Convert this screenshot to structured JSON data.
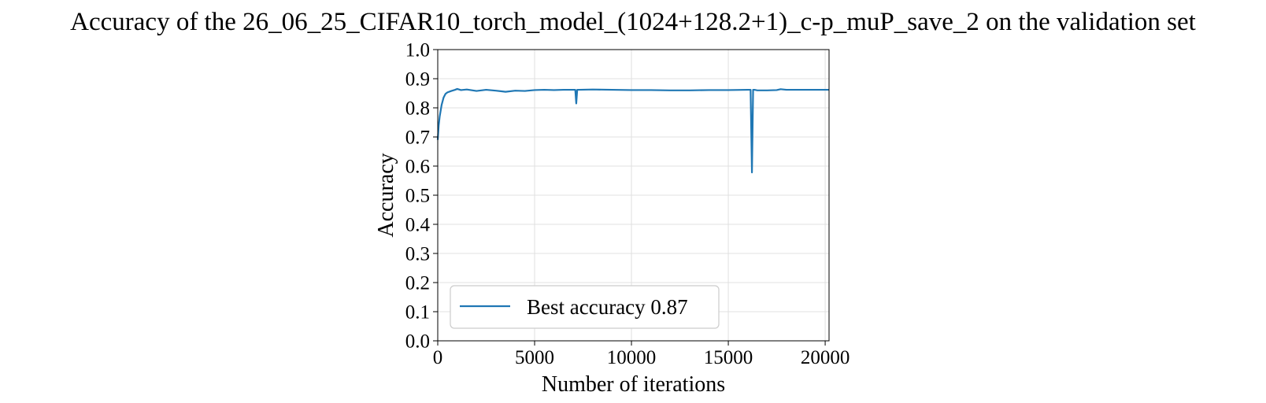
{
  "chart_data": {
    "type": "line",
    "title": "Accuracy of the 26_06_25_CIFAR10_torch_model_(1024+128.2+1)_c-p_muP_save_2 on the validation set",
    "xlabel": "Number of iterations",
    "ylabel": "Accuracy",
    "xlim": [
      0,
      20200
    ],
    "ylim": [
      0.0,
      1.0
    ],
    "x_ticks": [
      0,
      5000,
      10000,
      15000,
      20000
    ],
    "x_tick_labels": [
      "0",
      "5000",
      "10000",
      "15000",
      "20000"
    ],
    "y_ticks": [
      0.0,
      0.1,
      0.2,
      0.3,
      0.4,
      0.5,
      0.6,
      0.7,
      0.8,
      0.9,
      1.0
    ],
    "y_tick_labels": [
      "0.0",
      "0.1",
      "0.2",
      "0.3",
      "0.4",
      "0.5",
      "0.6",
      "0.7",
      "0.8",
      "0.9",
      "1.0"
    ],
    "grid": true,
    "legend_position": "bottom-left",
    "series_color": "#1f77b4",
    "series": [
      {
        "name": "Best accuracy 0.87",
        "x": [
          0,
          50,
          100,
          200,
          300,
          400,
          500,
          700,
          900,
          1000,
          1200,
          1500,
          2000,
          2500,
          3000,
          3500,
          4000,
          4500,
          5000,
          5500,
          6000,
          6500,
          7000,
          7100,
          7150,
          7200,
          7300,
          8000,
          9000,
          10000,
          11000,
          12000,
          13000,
          14000,
          15000,
          16000,
          16150,
          16220,
          16280,
          16350,
          16500,
          17000,
          17500,
          17700,
          18000,
          19000,
          20000,
          20200
        ],
        "y": [
          0.69,
          0.74,
          0.77,
          0.81,
          0.835,
          0.848,
          0.853,
          0.858,
          0.862,
          0.865,
          0.861,
          0.863,
          0.858,
          0.862,
          0.859,
          0.855,
          0.859,
          0.858,
          0.861,
          0.862,
          0.861,
          0.862,
          0.862,
          0.862,
          0.815,
          0.862,
          0.862,
          0.863,
          0.862,
          0.861,
          0.861,
          0.86,
          0.86,
          0.861,
          0.861,
          0.862,
          0.862,
          0.578,
          0.862,
          0.862,
          0.86,
          0.86,
          0.861,
          0.864,
          0.862,
          0.862,
          0.862,
          0.862
        ]
      }
    ]
  }
}
